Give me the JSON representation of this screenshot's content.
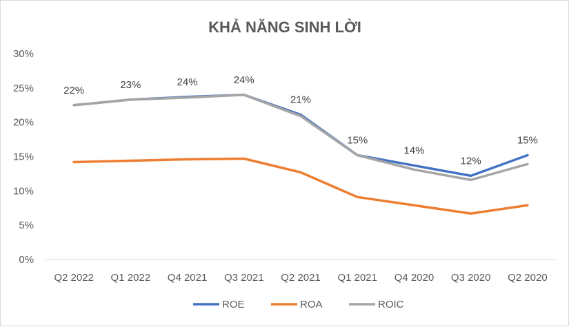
{
  "chart_data": {
    "type": "line",
    "title": "KHẢ NĂNG SINH LỜI",
    "xlabel": "",
    "ylabel": "",
    "categories": [
      "Q2 2022",
      "Q1 2022",
      "Q4 2021",
      "Q3 2021",
      "Q2 2021",
      "Q1 2021",
      "Q4 2020",
      "Q3 2020",
      "Q2 2020"
    ],
    "ylim": [
      0,
      0.3
    ],
    "yticks": [
      0,
      0.05,
      0.1,
      0.15,
      0.2,
      0.25,
      0.3
    ],
    "ytick_labels": [
      "0%",
      "5%",
      "10%",
      "15%",
      "20%",
      "25%",
      "30%"
    ],
    "grid": false,
    "legend_position": "bottom",
    "series": [
      {
        "name": "ROE",
        "color": "#4472C4",
        "values": [
          0.225,
          0.233,
          0.237,
          0.24,
          0.211,
          0.152,
          0.137,
          0.122,
          0.152
        ],
        "data_labels": [
          "22%",
          "23%",
          "24%",
          "24%",
          "21%",
          "15%",
          "14%",
          "12%",
          "15%"
        ]
      },
      {
        "name": "ROA",
        "color": "#ED7D31",
        "values": [
          0.142,
          0.144,
          0.146,
          0.147,
          0.127,
          0.091,
          0.079,
          0.067,
          0.079
        ]
      },
      {
        "name": "ROIC",
        "color": "#A5A5A5",
        "values": [
          0.225,
          0.233,
          0.236,
          0.24,
          0.209,
          0.152,
          0.131,
          0.116,
          0.139
        ]
      }
    ]
  }
}
